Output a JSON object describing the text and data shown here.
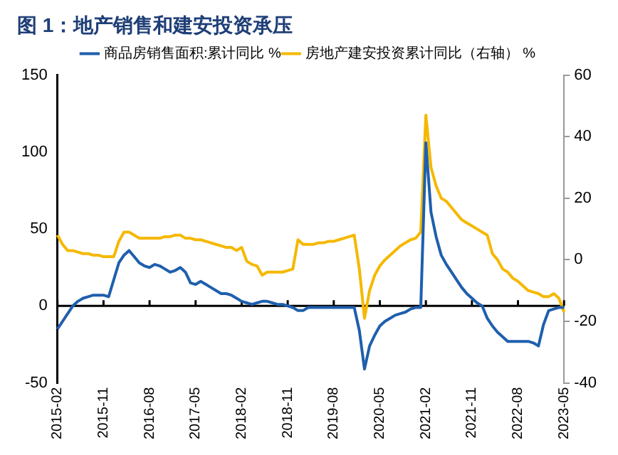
{
  "chart_data": {
    "type": "line",
    "title": "图 1：地产销售和建安投资承压",
    "categories": [
      "2015-02",
      null,
      null,
      null,
      null,
      null,
      null,
      null,
      null,
      "2015-11",
      null,
      null,
      null,
      null,
      null,
      null,
      null,
      null,
      "2016-08",
      null,
      null,
      null,
      null,
      null,
      null,
      null,
      null,
      "2017-05",
      null,
      null,
      null,
      null,
      null,
      null,
      null,
      null,
      "2018-02",
      null,
      null,
      null,
      null,
      null,
      null,
      null,
      null,
      "2018-11",
      null,
      null,
      null,
      null,
      null,
      null,
      null,
      null,
      "2019-08",
      null,
      null,
      null,
      null,
      null,
      null,
      null,
      null,
      "2020-05",
      null,
      null,
      null,
      null,
      null,
      null,
      null,
      null,
      "2021-02",
      null,
      null,
      null,
      null,
      null,
      null,
      null,
      null,
      "2021-11",
      null,
      null,
      null,
      null,
      null,
      null,
      null,
      null,
      "2022-08",
      null,
      null,
      null,
      null,
      null,
      null,
      null,
      null,
      "2023-05"
    ],
    "series": [
      {
        "name": "商品房销售面积:累计同比 %",
        "color": "#1f5fad",
        "values": [
          -15,
          -10,
          -5,
          0,
          3,
          5,
          6,
          7,
          7,
          7,
          6,
          17,
          28,
          33,
          36,
          32,
          28,
          26,
          25,
          27,
          26,
          24,
          22,
          23,
          25,
          22,
          15,
          14,
          16,
          14,
          12,
          10,
          8,
          8,
          7,
          5,
          3,
          2,
          1,
          2,
          3,
          3,
          2,
          1,
          1,
          0,
          -1,
          -3,
          -3,
          -1,
          -1,
          -1,
          -1,
          -1,
          -1,
          -1,
          -1,
          -1,
          -1,
          -16,
          -41,
          -26,
          -19,
          -13,
          -10,
          -8,
          -6,
          -5,
          -4,
          -2,
          -1,
          -1,
          106,
          61,
          45,
          33,
          27,
          22,
          17,
          12,
          8,
          5,
          2,
          0,
          -8,
          -13,
          -17,
          -20,
          -23,
          -23,
          -23,
          -23,
          -23,
          -24,
          -26,
          -12,
          -3,
          -2,
          -1,
          -1
        ]
      },
      {
        "name": "房地产建安投资累计同比（右轴） %",
        "color": "#f5b800",
        "axis": "y2",
        "values": [
          8,
          5,
          3,
          3,
          2.5,
          2,
          2,
          1.5,
          1.5,
          1,
          1,
          1,
          6,
          9,
          9,
          8,
          7,
          7,
          7,
          7,
          7,
          7.5,
          7.5,
          8,
          8,
          7,
          7,
          6.5,
          6.5,
          6,
          5.5,
          5,
          4.5,
          4,
          4,
          3,
          4,
          -0.5,
          -1.5,
          -2,
          -5,
          -4,
          -4,
          -4,
          -4,
          -3.5,
          -3,
          6.5,
          5,
          5,
          5,
          5.5,
          5.5,
          6,
          6,
          6.5,
          7,
          7.5,
          8,
          -3,
          -19,
          -10,
          -5,
          -2,
          0,
          1.5,
          3,
          4.5,
          5.5,
          6.5,
          7,
          9,
          47,
          30,
          24,
          20,
          19,
          17,
          15,
          13,
          12,
          11,
          10,
          9,
          8,
          2,
          0,
          -3,
          -4,
          -6,
          -7,
          -8.5,
          -10,
          -10.5,
          -11,
          -12,
          -12,
          -11,
          -12.5,
          -17
        ]
      }
    ],
    "ylim": [
      -50,
      150
    ],
    "yticks": [
      -50,
      0,
      50,
      100,
      150
    ],
    "y2lim": [
      -40,
      60
    ],
    "y2ticks": [
      -40,
      -20,
      0,
      20,
      40,
      60
    ],
    "ref_lines": [
      {
        "axis": "y",
        "value": 0,
        "color": "#000000"
      }
    ],
    "grid": false,
    "legend": "top",
    "marker": "none",
    "line_style": "solid"
  }
}
